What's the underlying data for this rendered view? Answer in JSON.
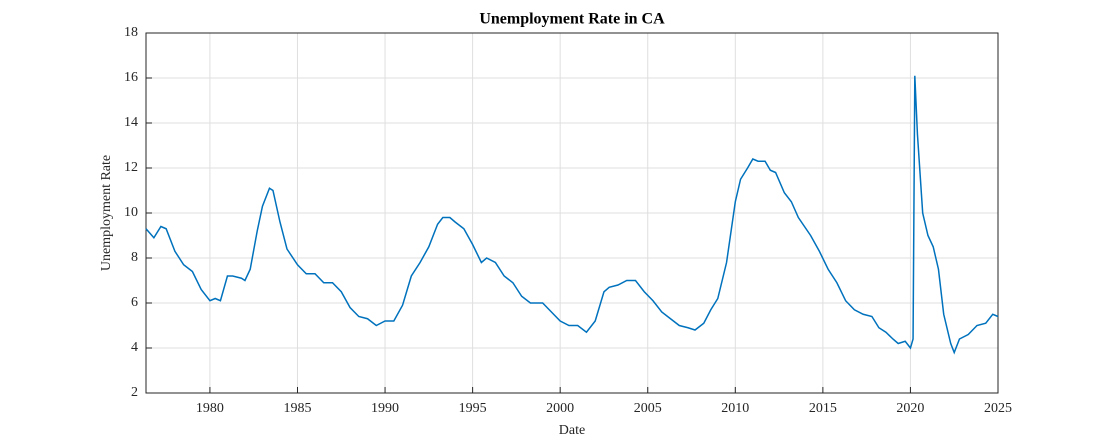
{
  "chart_data": {
    "type": "line",
    "title": "Unemployment Rate in CA",
    "x_label": "Date",
    "y_label": "Unemployment Rate",
    "x": [
      1976.35,
      1976.8,
      1977.2,
      1977.5,
      1978.0,
      1978.5,
      1979.0,
      1979.5,
      1980.0,
      1980.3,
      1980.6,
      1981.0,
      1981.3,
      1981.8,
      1982.0,
      1982.3,
      1982.7,
      1983.0,
      1983.4,
      1983.6,
      1984.0,
      1984.4,
      1985.0,
      1985.5,
      1986.0,
      1986.5,
      1987.0,
      1987.5,
      1988.0,
      1988.5,
      1989.0,
      1989.5,
      1990.0,
      1990.5,
      1991.0,
      1991.5,
      1992.0,
      1992.5,
      1993.0,
      1993.3,
      1993.7,
      1994.0,
      1994.5,
      1995.0,
      1995.5,
      1995.8,
      1996.3,
      1996.8,
      1997.3,
      1997.8,
      1998.3,
      1999.0,
      1999.5,
      2000.0,
      2000.5,
      2001.0,
      2001.5,
      2002.0,
      2002.5,
      2002.8,
      2003.3,
      2003.8,
      2004.3,
      2004.8,
      2005.3,
      2005.8,
      2006.3,
      2006.8,
      2007.3,
      2007.7,
      2008.2,
      2008.6,
      2009.0,
      2009.5,
      2010.0,
      2010.3,
      2010.7,
      2011.0,
      2011.3,
      2011.7,
      2012.0,
      2012.3,
      2012.8,
      2013.2,
      2013.6,
      2014.3,
      2014.8,
      2015.3,
      2015.8,
      2016.3,
      2016.8,
      2017.3,
      2017.8,
      2018.2,
      2018.6,
      2019.0,
      2019.3,
      2019.7,
      2020.0,
      2020.15,
      2020.25,
      2020.4,
      2020.7,
      2021.0,
      2021.3,
      2021.6,
      2021.9,
      2022.3,
      2022.5,
      2022.8,
      2023.3,
      2023.8,
      2024.3,
      2024.7,
      2025.0
    ],
    "series": [
      {
        "name": "Unemployment Rate",
        "color": "#0072bd",
        "values": [
          9.3,
          8.9,
          9.4,
          9.3,
          8.3,
          7.7,
          7.4,
          6.6,
          6.1,
          6.2,
          6.1,
          7.2,
          7.2,
          7.1,
          7.0,
          7.5,
          9.2,
          10.3,
          11.1,
          11.0,
          9.6,
          8.4,
          7.7,
          7.3,
          7.3,
          6.9,
          6.9,
          6.5,
          5.8,
          5.4,
          5.3,
          5.0,
          5.2,
          5.2,
          5.9,
          7.2,
          7.8,
          8.5,
          9.5,
          9.8,
          9.8,
          9.6,
          9.3,
          8.6,
          7.8,
          8.0,
          7.8,
          7.2,
          6.9,
          6.3,
          6.0,
          6.0,
          5.6,
          5.2,
          5.0,
          5.0,
          4.7,
          5.2,
          6.5,
          6.7,
          6.8,
          7.0,
          7.0,
          6.5,
          6.1,
          5.6,
          5.3,
          5.0,
          4.9,
          4.8,
          5.1,
          5.7,
          6.2,
          7.8,
          10.5,
          11.5,
          12.0,
          12.4,
          12.3,
          12.3,
          11.9,
          11.8,
          10.9,
          10.5,
          9.8,
          9.0,
          8.3,
          7.5,
          6.9,
          6.1,
          5.7,
          5.5,
          5.4,
          4.9,
          4.7,
          4.4,
          4.2,
          4.3,
          4.0,
          4.4,
          16.1,
          13.5,
          10.0,
          9.0,
          8.5,
          7.5,
          5.5,
          4.2,
          3.8,
          4.4,
          4.6,
          5.0,
          5.1,
          5.5,
          5.4
        ]
      }
    ],
    "xlim": [
      1976.35,
      2025
    ],
    "xticks": [
      1980,
      1985,
      1990,
      1995,
      2000,
      2005,
      2010,
      2015,
      2020,
      2025
    ],
    "ylim": [
      2,
      18
    ],
    "yticks": [
      2,
      4,
      6,
      8,
      10,
      12,
      14,
      16,
      18
    ],
    "grid": true
  }
}
